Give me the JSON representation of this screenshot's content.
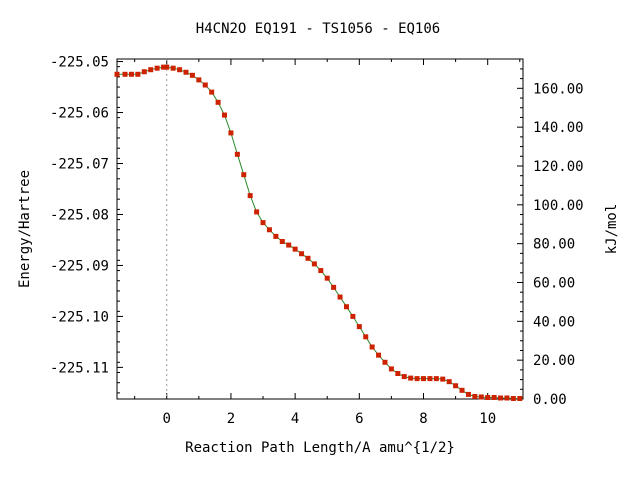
{
  "chart_data": {
    "type": "scatter",
    "title": "H4CN2O   EQ191 - TS1056 - EQ106",
    "xlabel": "Reaction Path Length/A amu^{1/2}",
    "ylabel_left": "Energy/Hartree",
    "ylabel_right": "kJ/mol",
    "xlim": [
      -1.55,
      11.1
    ],
    "ylim_left": [
      -225.1162,
      -225.0495
    ],
    "ylim_right": [
      0,
      175.1
    ],
    "x_ticks": [
      0,
      2,
      4,
      6,
      8,
      10
    ],
    "x_tick_labels": [
      "0",
      "2",
      "4",
      "6",
      "8",
      "10"
    ],
    "y_left_ticks": [
      -225.05,
      -225.06,
      -225.07,
      -225.08,
      -225.09,
      -225.1,
      -225.11
    ],
    "y_left_tick_labels": [
      "-225.05",
      "-225.06",
      "-225.07",
      "-225.08",
      "-225.09",
      "-225.10",
      "-225.11"
    ],
    "y_right_ticks": [
      0,
      20,
      40,
      60,
      80,
      100,
      120,
      140,
      160
    ],
    "y_right_tick_labels": [
      "0.00",
      "20.00",
      "40.00",
      "60.00",
      "80.00",
      "100.00",
      "120.00",
      "140.00",
      "160.00"
    ],
    "ts_marker_x": 0,
    "grid": false,
    "colors": {
      "points": "#cc2200",
      "line": "#2a8a2a",
      "ts_line": "#999999",
      "axis": "#000000"
    },
    "series": [
      {
        "x": [
          -1.55,
          -1.3,
          -1.1,
          -0.9,
          -0.7,
          -0.5,
          -0.3,
          -0.1,
          0.0,
          0.2,
          0.4,
          0.6,
          0.8,
          1.0,
          1.2,
          1.4,
          1.6,
          1.8,
          2.0,
          2.2,
          2.4,
          2.6,
          2.8,
          3.0,
          3.2,
          3.4,
          3.6,
          3.8,
          4.0,
          4.2,
          4.4,
          4.6,
          4.8,
          5.0,
          5.2,
          5.4,
          5.6,
          5.8,
          6.0,
          6.2,
          6.4,
          6.6,
          6.8,
          7.0,
          7.2,
          7.4,
          7.6,
          7.8,
          8.0,
          8.2,
          8.4,
          8.6,
          8.8,
          9.0,
          9.2,
          9.4,
          9.6,
          9.8,
          10.0,
          10.2,
          10.4,
          10.6,
          10.8,
          11.0
        ],
        "y": [
          -225.0525,
          -225.0525,
          -225.0525,
          -225.0525,
          -225.052,
          -225.0516,
          -225.0513,
          -225.0511,
          -225.0511,
          -225.0513,
          -225.0516,
          -225.0521,
          -225.0527,
          -225.0536,
          -225.0546,
          -225.056,
          -225.058,
          -225.0605,
          -225.064,
          -225.0682,
          -225.0722,
          -225.0763,
          -225.0795,
          -225.0816,
          -225.083,
          -225.0843,
          -225.0853,
          -225.086,
          -225.0868,
          -225.0877,
          -225.0886,
          -225.0897,
          -225.091,
          -225.0925,
          -225.0943,
          -225.0962,
          -225.0981,
          -225.1,
          -225.102,
          -225.104,
          -225.106,
          -225.1076,
          -225.109,
          -225.1103,
          -225.1112,
          -225.1118,
          -225.1121,
          -225.1122,
          -225.1122,
          -225.1122,
          -225.1122,
          -225.1123,
          -225.1128,
          -225.1136,
          -225.1145,
          -225.1153,
          -225.1157,
          -225.1158,
          -225.1159,
          -225.1159,
          -225.116,
          -225.116,
          -225.1161,
          -225.1161
        ]
      }
    ]
  }
}
